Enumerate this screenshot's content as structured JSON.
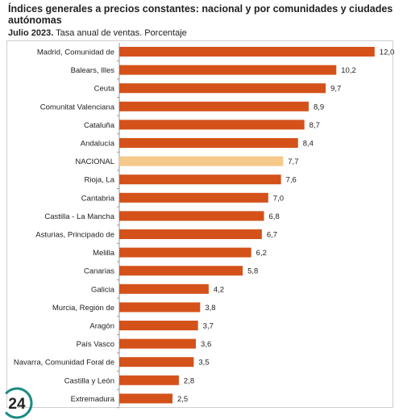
{
  "chart_data": {
    "type": "bar",
    "orientation": "horizontal",
    "title": "Índices generales a precios constantes: nacional y por comunidades y ciudades autónomas",
    "subtitle_bold": "Julio 2023.",
    "subtitle": "Tasa anual de ventas. Porcentaje",
    "categories": [
      "Madrid, Comunidad de",
      "Balears, Illes",
      "Ceuta",
      "Comunitat Valenciana",
      "Cataluña",
      "Andalucía",
      "NACIONAL",
      "Rioja, La",
      "Cantabria",
      "Castilla - La Mancha",
      "Asturias, Principado de",
      "Melilla",
      "Canarias",
      "Galicia",
      "Murcia, Región de",
      "Aragón",
      "País Vasco",
      "Navarra, Comunidad Foral de",
      "Castilla y León",
      "Extremadura"
    ],
    "values": [
      12.0,
      10.2,
      9.7,
      8.9,
      8.7,
      8.4,
      7.7,
      7.6,
      7.0,
      6.8,
      6.7,
      6.2,
      5.8,
      4.2,
      3.8,
      3.7,
      3.6,
      3.5,
      2.8,
      2.5
    ],
    "value_labels": [
      "12,0",
      "10,2",
      "9,7",
      "8,9",
      "8,7",
      "8,4",
      "7,7",
      "7,6",
      "7,0",
      "6,8",
      "6,7",
      "6,2",
      "5,8",
      "4,2",
      "3,8",
      "3,7",
      "3,6",
      "3,5",
      "2,8",
      "2,5"
    ],
    "highlight_category": "NACIONAL",
    "xlim": [
      0,
      12.5
    ],
    "grid": false,
    "colors": {
      "bar": "#d4521a",
      "highlight": "#f5c98a"
    }
  },
  "logo": {
    "text": "24"
  }
}
